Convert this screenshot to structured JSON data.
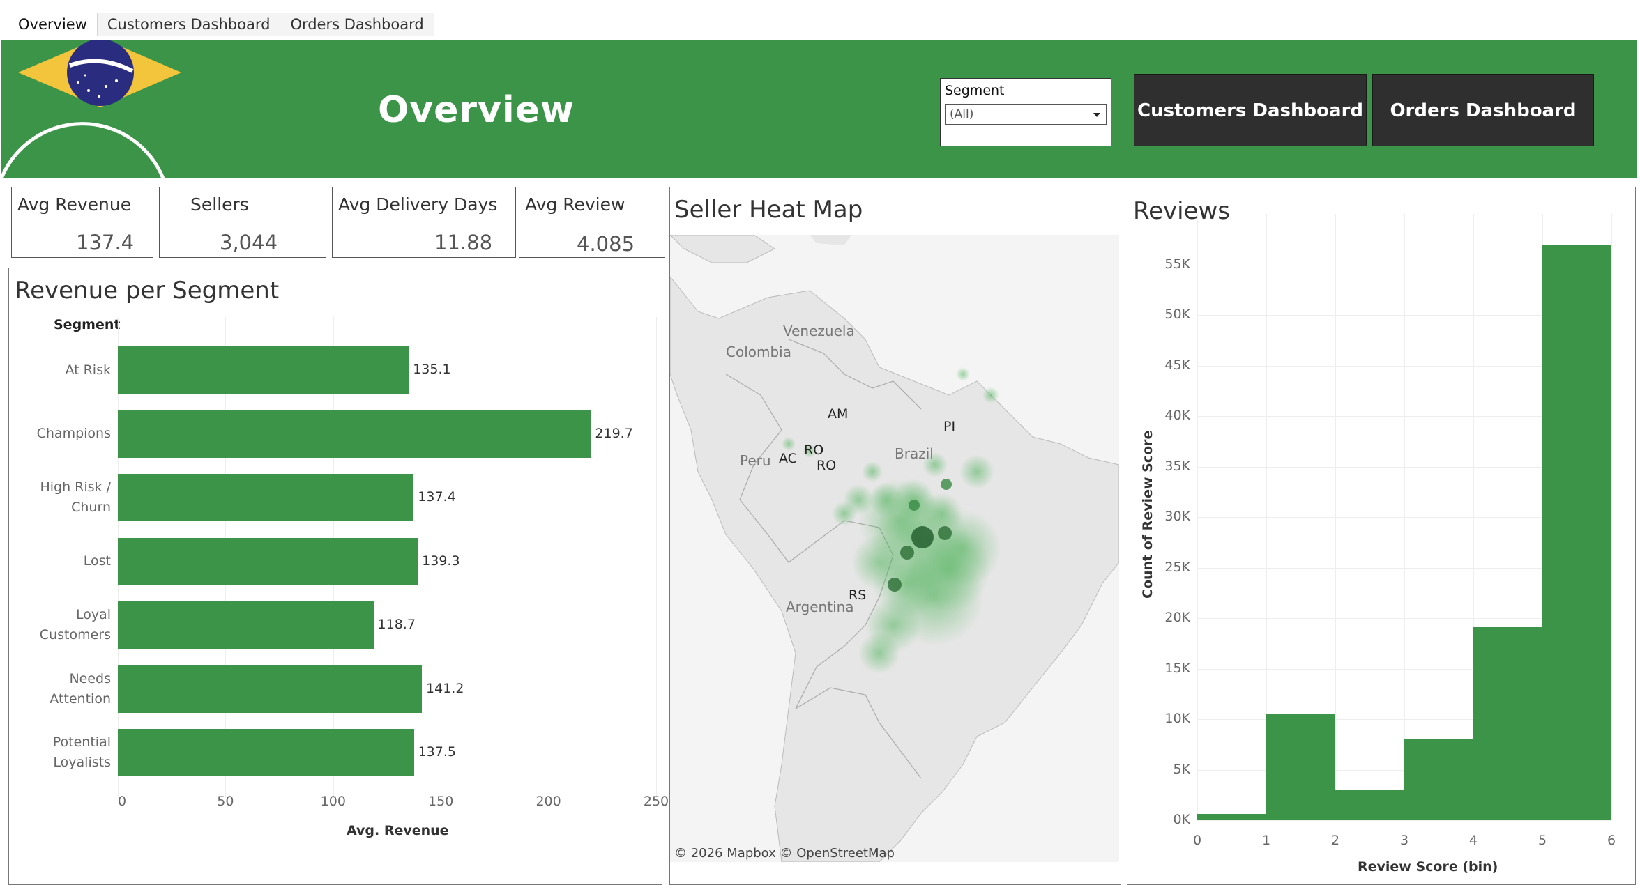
{
  "tabs": [
    "Overview",
    "Customers Dashboard",
    "Orders Dashboard"
  ],
  "header": {
    "title": "Overview",
    "segment_filter": {
      "label": "Segment",
      "value": "(All)"
    },
    "buttons": [
      "Customers Dashboard",
      "Orders Dashboard"
    ],
    "accent_color": "#3c9449",
    "flag_icon": "brazil-flag-icon"
  },
  "kpis": [
    {
      "label": "Avg Revenue",
      "value": "137.4"
    },
    {
      "label": "Sellers",
      "value": "3,044"
    },
    {
      "label": "Avg Delivery Days",
      "value": "11.88"
    },
    {
      "label": "Avg Review",
      "value": "4.085"
    }
  ],
  "revenue_panel": {
    "title": "Revenue per Segment"
  },
  "map_panel": {
    "title": "Seller Heat Map",
    "countries": [
      "Venezuela",
      "Colombia",
      "Peru",
      "Brazil",
      "Argentina"
    ],
    "states": [
      "AM",
      "PI",
      "RO",
      "AC",
      "RO",
      "RS"
    ],
    "attribution": "© 2026 Mapbox  © OpenStreetMap"
  },
  "reviews_panel": {
    "title": "Reviews"
  },
  "chart_data": [
    {
      "type": "bar",
      "orientation": "horizontal",
      "title": "Revenue per Segment",
      "ylabel": "Segment",
      "xlabel": "Avg. Revenue",
      "categories": [
        "At Risk",
        "Champions",
        "High Risk / Churn",
        "Lost",
        "Loyal Customers",
        "Needs Attention",
        "Potential Loyalists"
      ],
      "category_lines": [
        [
          "At Risk"
        ],
        [
          "Champions"
        ],
        [
          "High Risk /",
          "Churn"
        ],
        [
          "Lost"
        ],
        [
          "Loyal",
          "Customers"
        ],
        [
          "Needs",
          "Attention"
        ],
        [
          "Potential",
          "Loyalists"
        ]
      ],
      "values": [
        135.1,
        219.7,
        137.4,
        139.3,
        118.7,
        141.2,
        137.5
      ],
      "value_labels": [
        "135.1",
        "219.7",
        "137.4",
        "139.3",
        "118.7",
        "141.2",
        "137.5"
      ],
      "xticks": [
        "0",
        "50",
        "100",
        "150",
        "200",
        "250"
      ],
      "xlim": [
        0,
        250
      ],
      "color": "#3c9449"
    },
    {
      "type": "bar",
      "subtype": "histogram",
      "title": "Reviews",
      "xlabel": "Review Score (bin)",
      "ylabel": "Count of Review Score",
      "bin_edges": [
        0,
        1,
        2,
        3,
        4,
        5,
        6
      ],
      "values": [
        600,
        10500,
        3000,
        8100,
        19100,
        57000
      ],
      "xticks": [
        "0",
        "1",
        "2",
        "3",
        "4",
        "5",
        "6"
      ],
      "yticks": [
        "0K",
        "5K",
        "10K",
        "15K",
        "20K",
        "25K",
        "30K",
        "35K",
        "40K",
        "45K",
        "50K",
        "55K"
      ],
      "ylim": [
        0,
        60000
      ],
      "color": "#3c9449"
    }
  ]
}
